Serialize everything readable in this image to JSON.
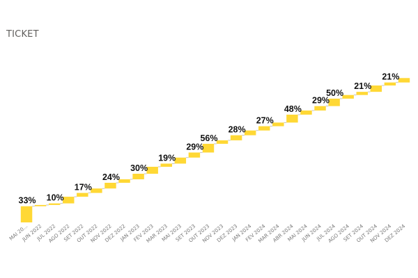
{
  "header": {
    "title": "TICKET"
  },
  "chart_data": {
    "type": "waterfall",
    "title": "TICKET",
    "categories": [
      "MAI 20...",
      "JUN 2022",
      "JUL 2022",
      "AGO 2022",
      "SET 2022",
      "OUT 2022",
      "NOV 2022",
      "DEZ 2022",
      "JAN 2023",
      "FEV 2023",
      "MAR 2023",
      "MAI 2023",
      "SET 2023",
      "OUT 2023",
      "NOV 2023",
      "DEZ 2023",
      "JAN 2024",
      "FEV 2024",
      "MAR 2024",
      "ABR 2024",
      "MAI 2024",
      "JUN 2024",
      "JUL 2024",
      "AGO 2024",
      "SET 2024",
      "OUT 2024",
      "NOV 2024",
      "DEZ 2024"
    ],
    "increments": [
      10.2,
      0.8,
      1.0,
      4.2,
      2.4,
      2.8,
      3.6,
      2.2,
      3.5,
      4.4,
      2.0,
      3.8,
      3.2,
      5.5,
      2.2,
      3.2,
      3.0,
      2.7,
      2.3,
      5.0,
      2.6,
      2.8,
      4.7,
      2.3,
      2.0,
      4.0,
      1.9,
      2.8
    ],
    "labels": [
      "33%",
      "",
      "10%",
      "",
      "17%",
      "",
      "24%",
      "",
      "30%",
      "",
      "19%",
      "",
      "29%",
      "56%",
      "",
      "28%",
      "",
      "27%",
      "",
      "48%",
      "",
      "29%",
      "50%",
      "",
      "21%",
      "",
      "21%",
      ""
    ],
    "ylim": [
      0,
      100
    ],
    "bar_color": "#ffd835",
    "connector_color": "#b3b3b3",
    "label_color": "#111111",
    "tick_color": "#777777"
  }
}
